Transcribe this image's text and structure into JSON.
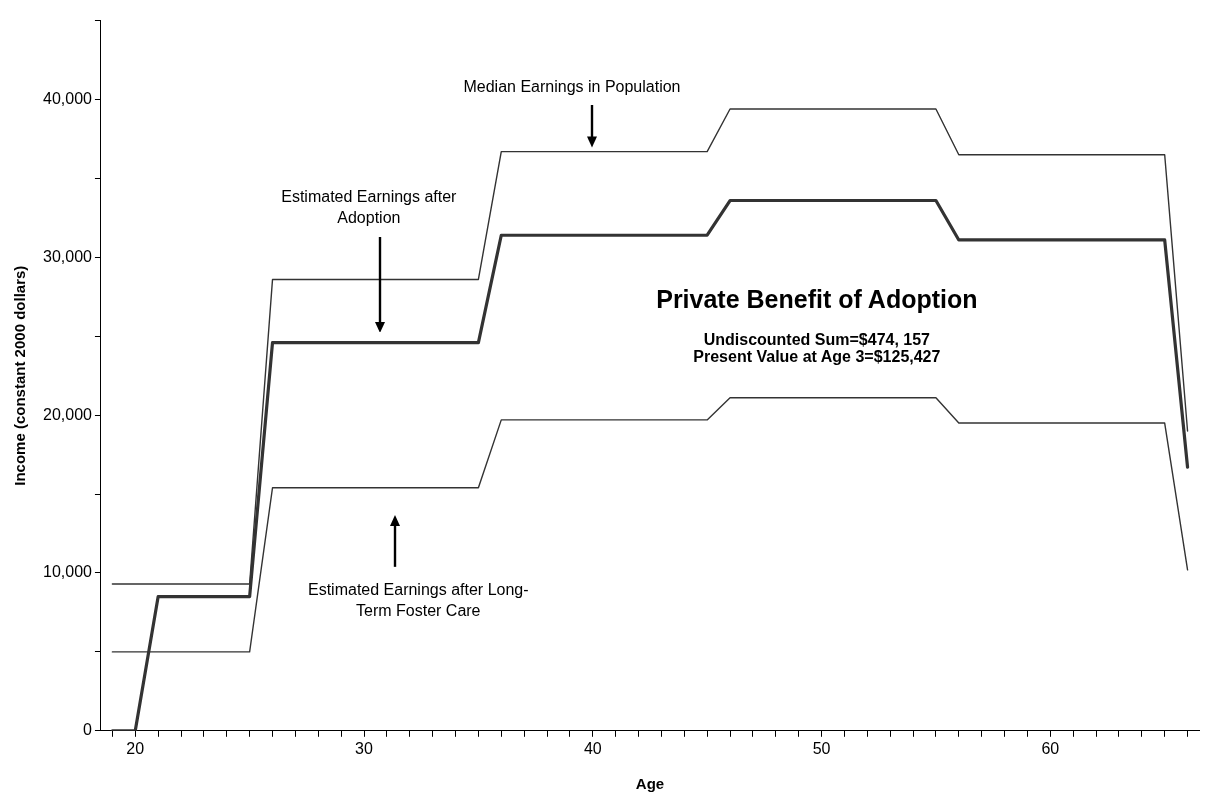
{
  "chart_data": {
    "type": "line",
    "xlabel": "Age",
    "ylabel": "Income (constant 2000 dollars)",
    "x": [
      19,
      20,
      21,
      22,
      23,
      24,
      25,
      26,
      27,
      28,
      29,
      30,
      31,
      32,
      33,
      34,
      35,
      36,
      37,
      38,
      39,
      40,
      41,
      42,
      43,
      44,
      45,
      46,
      47,
      48,
      49,
      50,
      51,
      52,
      53,
      54,
      55,
      56,
      57,
      58,
      59,
      60,
      61,
      62,
      63,
      64,
      65,
      66
    ],
    "series": [
      {
        "color": "#333333",
        "values": [
          9300,
          9300,
          9300,
          9300,
          9300,
          9300,
          9300,
          28600,
          28600,
          28600,
          28600,
          28600,
          28600,
          28600,
          28600,
          28600,
          28600,
          36700,
          36700,
          36700,
          36700,
          36700,
          36700,
          36700,
          36700,
          36700,
          36700,
          39400,
          39400,
          39400,
          39400,
          39400,
          39400,
          39400,
          39400,
          39400,
          39400,
          36500,
          36500,
          36500,
          36500,
          36500,
          36500,
          36500,
          36500,
          36500,
          36500,
          19000
        ]
      },
      {
        "color": "#333333",
        "values": [
          0,
          0,
          8500,
          8500,
          8500,
          8500,
          8500,
          24600,
          24600,
          24600,
          24600,
          24600,
          24600,
          24600,
          24600,
          24600,
          24600,
          31400,
          31400,
          31400,
          31400,
          31400,
          31400,
          31400,
          31400,
          31400,
          31400,
          33600,
          33600,
          33600,
          33600,
          33600,
          33600,
          33600,
          33600,
          33600,
          33600,
          31100,
          31100,
          31100,
          31100,
          31100,
          31100,
          31100,
          31100,
          31100,
          31100,
          16700
        ]
      },
      {
        "color": "#333333",
        "values": [
          5000,
          5000,
          5000,
          5000,
          5000,
          5000,
          5000,
          15400,
          15400,
          15400,
          15400,
          15400,
          15400,
          15400,
          15400,
          15400,
          15400,
          19700,
          19700,
          19700,
          19700,
          19700,
          19700,
          19700,
          19700,
          19700,
          19700,
          21100,
          21100,
          21100,
          21100,
          21100,
          21100,
          21100,
          21100,
          21100,
          21100,
          19500,
          19500,
          19500,
          19500,
          19500,
          19500,
          19500,
          19500,
          19500,
          19500,
          10200
        ]
      }
    ],
    "xlim": [
      18.5,
      66.5
    ],
    "xticks": [
      {
        "value": 19,
        "label": null
      },
      20,
      {
        "value": 21,
        "label": null
      },
      {
        "value": 22,
        "label": null
      },
      {
        "value": 23,
        "label": null
      },
      {
        "value": 24,
        "label": null
      },
      {
        "value": 25,
        "label": null
      },
      {
        "value": 26,
        "label": null
      },
      {
        "value": 27,
        "label": null
      },
      {
        "value": 28,
        "label": null
      },
      {
        "value": 29,
        "label": null
      },
      30,
      {
        "value": 31,
        "label": null
      },
      {
        "value": 32,
        "label": null
      },
      {
        "value": 33,
        "label": null
      },
      {
        "value": 34,
        "label": null
      },
      {
        "value": 35,
        "label": null
      },
      {
        "value": 36,
        "label": null
      },
      {
        "value": 37,
        "label": null
      },
      {
        "value": 38,
        "label": null
      },
      {
        "value": 39,
        "label": null
      },
      40,
      {
        "value": 41,
        "label": null
      },
      {
        "value": 42,
        "label": null
      },
      {
        "value": 43,
        "label": null
      },
      {
        "value": 44,
        "label": null
      },
      {
        "value": 45,
        "label": null
      },
      {
        "value": 46,
        "label": null
      },
      {
        "value": 47,
        "label": null
      },
      {
        "value": 48,
        "label": null
      },
      {
        "value": 49,
        "label": null
      },
      50,
      {
        "value": 51,
        "label": null
      },
      {
        "value": 52,
        "label": null
      },
      {
        "value": 53,
        "label": null
      },
      {
        "value": 54,
        "label": null
      },
      {
        "value": 55,
        "label": null
      },
      {
        "value": 56,
        "label": null
      },
      {
        "value": 57,
        "label": null
      },
      {
        "value": 58,
        "label": null
      },
      {
        "value": 59,
        "label": null
      },
      60,
      {
        "value": 61,
        "label": null
      },
      {
        "value": 62,
        "label": null
      },
      {
        "value": 63,
        "label": null
      },
      {
        "value": 64,
        "label": null
      },
      {
        "value": 65,
        "label": null
      },
      {
        "value": 66,
        "label": null
      }
    ],
    "ylim": [
      0,
      45000
    ],
    "yticks": [
      0,
      {
        "value": 5000,
        "label": null
      },
      {
        "value": 10000,
        "label": "10,000"
      },
      {
        "value": 15000,
        "label": null
      },
      {
        "value": 20000,
        "label": "20,000"
      },
      {
        "value": 25000,
        "label": null
      },
      {
        "value": 30000,
        "label": "30,000"
      },
      {
        "value": 35000,
        "label": null
      },
      {
        "value": 40000,
        "label": "40,000"
      },
      {
        "value": 45000,
        "label": null
      }
    ],
    "grid": false,
    "legend": false,
    "marker": "none",
    "line_style": "solid",
    "annotations": [
      "Median Earnings in Population",
      "Estimated Earnings after Adoption",
      "Estimated Earnings after Long-Term Foster Care",
      "Private Benefit of Adoption",
      "Undiscounted Sum=$474, 157",
      "Present Value at Age 3=$125,427"
    ]
  }
}
